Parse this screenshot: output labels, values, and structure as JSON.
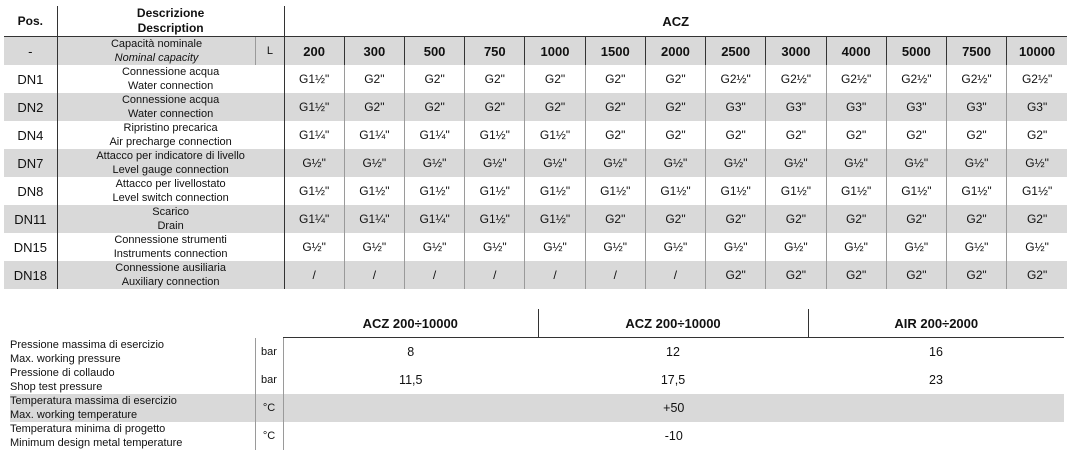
{
  "top_table": {
    "header": {
      "pos": "Pos.",
      "description_it": "Descrizione",
      "description_en": "Description",
      "group": "ACZ"
    },
    "capacity_row": {
      "pos": "-",
      "description_it": "Capacità nominale",
      "description_en": "Nominal capacity",
      "unit": "L",
      "values": [
        "200",
        "300",
        "500",
        "750",
        "1000",
        "1500",
        "2000",
        "2500",
        "3000",
        "4000",
        "5000",
        "7500",
        "10000"
      ]
    },
    "rows": [
      {
        "pos": "DN1",
        "description_it": "Connessione acqua",
        "description_en": "Water connection",
        "values": [
          "G1½\"",
          "G2\"",
          "G2\"",
          "G2\"",
          "G2\"",
          "G2\"",
          "G2\"",
          "G2½\"",
          "G2½\"",
          "G2½\"",
          "G2½\"",
          "G2½\"",
          "G2½\""
        ]
      },
      {
        "pos": "DN2",
        "description_it": "Connessione acqua",
        "description_en": "Water connection",
        "values": [
          "G1½\"",
          "G2\"",
          "G2\"",
          "G2\"",
          "G2\"",
          "G2\"",
          "G2\"",
          "G3\"",
          "G3\"",
          "G3\"",
          "G3\"",
          "G3\"",
          "G3\""
        ]
      },
      {
        "pos": "DN4",
        "description_it": "Ripristino precarica",
        "description_en": "Air precharge connection",
        "values": [
          "G1¼\"",
          "G1¼\"",
          "G1¼\"",
          "G1½\"",
          "G1½\"",
          "G2\"",
          "G2\"",
          "G2\"",
          "G2\"",
          "G2\"",
          "G2\"",
          "G2\"",
          "G2\""
        ]
      },
      {
        "pos": "DN7",
        "description_it": "Attacco per indicatore di livello",
        "description_en": "Level gauge connection",
        "values": [
          "G½\"",
          "G½\"",
          "G½\"",
          "G½\"",
          "G½\"",
          "G½\"",
          "G½\"",
          "G½\"",
          "G½\"",
          "G½\"",
          "G½\"",
          "G½\"",
          "G½\""
        ]
      },
      {
        "pos": "DN8",
        "description_it": "Attacco per livellostato",
        "description_en": "Level switch connection",
        "values": [
          "G1½\"",
          "G1½\"",
          "G1½\"",
          "G1½\"",
          "G1½\"",
          "G1½\"",
          "G1½\"",
          "G1½\"",
          "G1½\"",
          "G1½\"",
          "G1½\"",
          "G1½\"",
          "G1½\""
        ]
      },
      {
        "pos": "DN11",
        "description_it": "Scarico",
        "description_en": "Drain",
        "values": [
          "G1¼\"",
          "G1¼\"",
          "G1¼\"",
          "G1½\"",
          "G1½\"",
          "G2\"",
          "G2\"",
          "G2\"",
          "G2\"",
          "G2\"",
          "G2\"",
          "G2\"",
          "G2\""
        ]
      },
      {
        "pos": "DN15",
        "description_it": "Connessione strumenti",
        "description_en": "Instruments connection",
        "values": [
          "G½\"",
          "G½\"",
          "G½\"",
          "G½\"",
          "G½\"",
          "G½\"",
          "G½\"",
          "G½\"",
          "G½\"",
          "G½\"",
          "G½\"",
          "G½\"",
          "G½\""
        ]
      },
      {
        "pos": "DN18",
        "description_it": "Connessione ausiliaria",
        "description_en": "Auxiliary connection",
        "values": [
          "/",
          "/",
          "/",
          "/",
          "/",
          "/",
          "/",
          "G2\"",
          "G2\"",
          "G2\"",
          "G2\"",
          "G2\"",
          "G2\""
        ]
      }
    ]
  },
  "bottom_table": {
    "headers": [
      "ACZ 200÷10000",
      "ACZ 200÷10000",
      "AIR 200÷2000"
    ],
    "rows": [
      {
        "label_it": "Pressione massima di esercizio",
        "label_en": "Max. working pressure",
        "unit": "bar",
        "values": [
          "8",
          "12",
          "16"
        ]
      },
      {
        "label_it": "Pressione di collaudo",
        "label_en": "Shop test pressure",
        "unit": "bar",
        "values": [
          "11,5",
          "17,5",
          "23"
        ]
      },
      {
        "label_it": "Temperatura massima di esercizio",
        "label_en": "Max. working temperature",
        "unit": "°C",
        "values": [
          "+50"
        ]
      },
      {
        "label_it": "Temperatura minima di progetto",
        "label_en": "Minimum design metal temperature",
        "unit": "°C",
        "values": [
          "-10"
        ]
      }
    ]
  }
}
